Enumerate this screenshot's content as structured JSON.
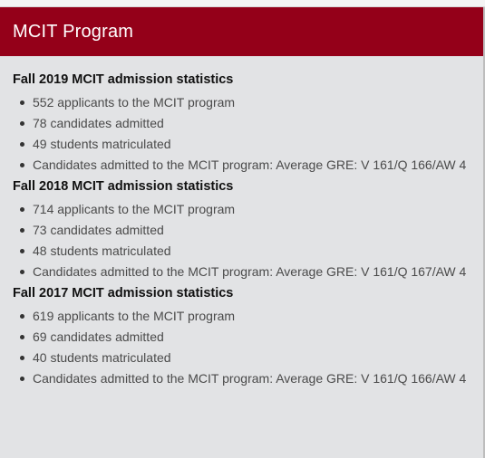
{
  "header": {
    "title": "MCIT Program"
  },
  "sections": [
    {
      "heading": "Fall 2019 MCIT admission statistics",
      "items": [
        "552 applicants to the MCIT program",
        "78 candidates admitted",
        "49 students matriculated",
        "Candidates admitted to the MCIT program: Average GRE: V 161/Q 166/AW 4"
      ]
    },
    {
      "heading": "Fall 2018 MCIT admission statistics",
      "items": [
        "714 applicants to the MCIT program",
        "73 candidates admitted",
        "48 students matriculated",
        "Candidates admitted to the MCIT program: Average GRE: V 161/Q 167/AW 4"
      ]
    },
    {
      "heading": "Fall 2017 MCIT admission statistics",
      "items": [
        "619 applicants to the MCIT program",
        "69 candidates admitted",
        "40 students matriculated",
        "Candidates admitted to the MCIT program: Average GRE: V 161/Q 166/AW 4"
      ]
    }
  ]
}
